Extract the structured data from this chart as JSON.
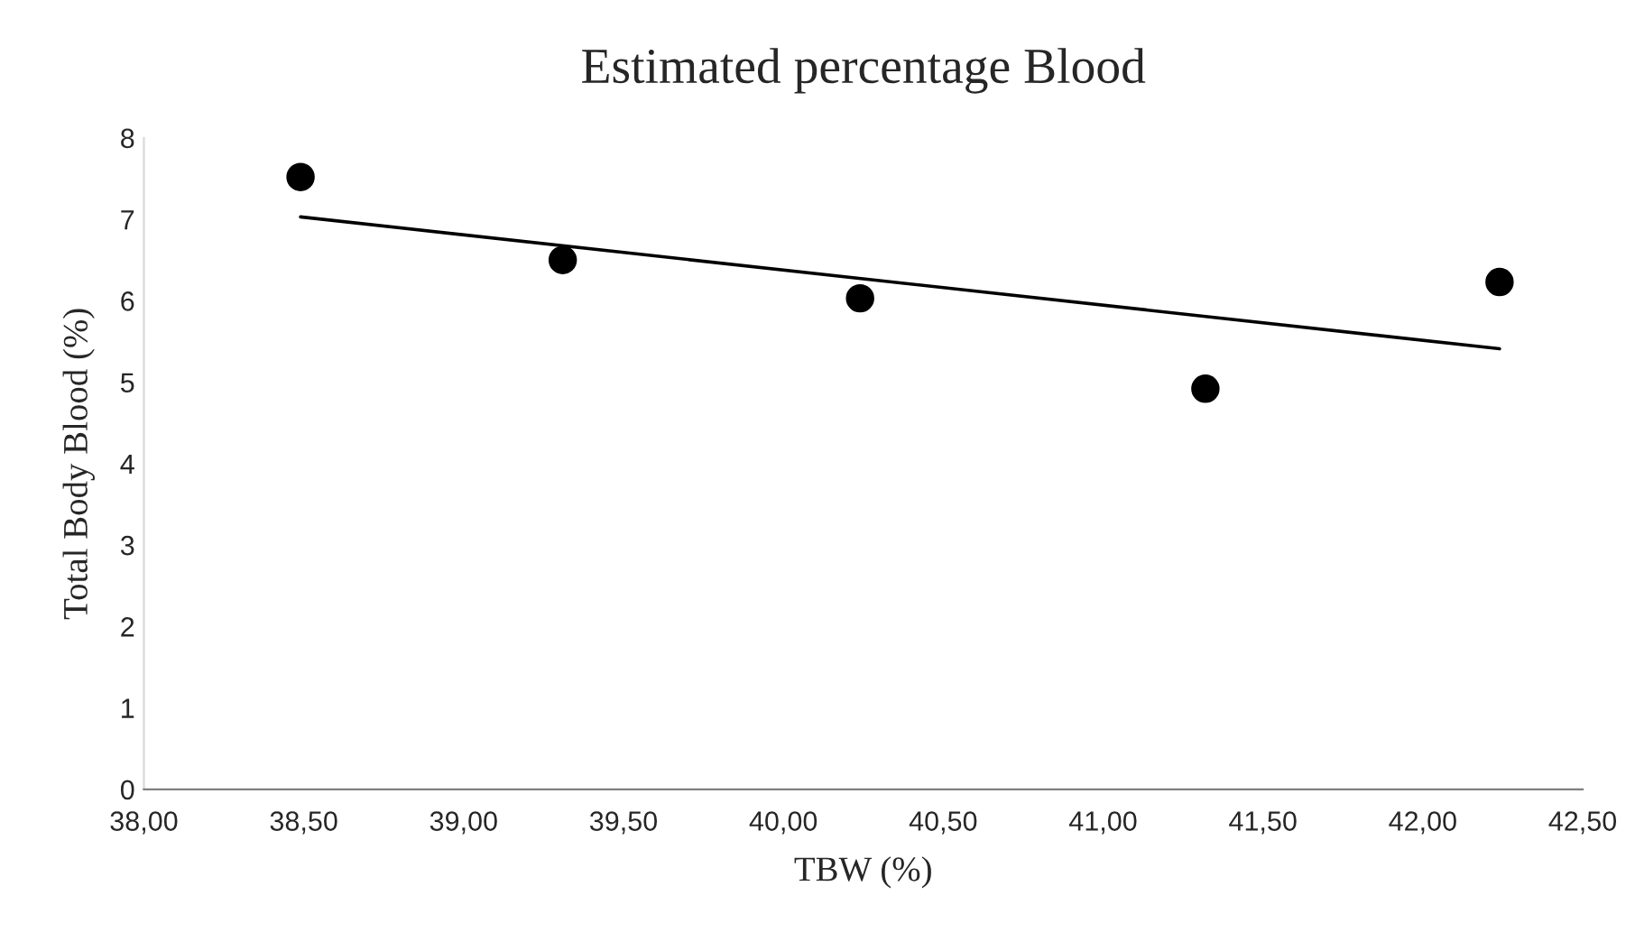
{
  "chart_data": {
    "type": "scatter",
    "title": "Estimated percentage Blood",
    "xlabel": "TBW (%)",
    "ylabel": "Total Body Blood (%)",
    "series": [
      {
        "color": "#000000",
        "x": [
          38.49,
          39.31,
          40.24,
          41.32,
          42.24
        ],
        "values": [
          7.52,
          6.5,
          6.03,
          4.92,
          6.23
        ],
        "marker": "circle"
      },
      {
        "type": "line",
        "color": "#000000",
        "x": [
          38.49,
          42.24
        ],
        "values": [
          7.03,
          5.41
        ],
        "marker": "none",
        "line_style": "solid"
      }
    ],
    "xlim": [
      38.0,
      42.5
    ],
    "xticks": [
      {
        "value": 38.0,
        "label": "38,00"
      },
      {
        "value": 38.5,
        "label": "38,50"
      },
      {
        "value": 39.0,
        "label": "39,00"
      },
      {
        "value": 39.5,
        "label": "39,50"
      },
      {
        "value": 40.0,
        "label": "40,00"
      },
      {
        "value": 40.5,
        "label": "40,50"
      },
      {
        "value": 41.0,
        "label": "41,00"
      },
      {
        "value": 41.5,
        "label": "41,50"
      },
      {
        "value": 42.0,
        "label": "42,00"
      },
      {
        "value": 42.5,
        "label": "42,50"
      }
    ],
    "ylim": [
      0,
      8
    ],
    "yticks": [
      0,
      1,
      2,
      3,
      4,
      5,
      6,
      7,
      8
    ],
    "grid": false,
    "legend": false
  }
}
